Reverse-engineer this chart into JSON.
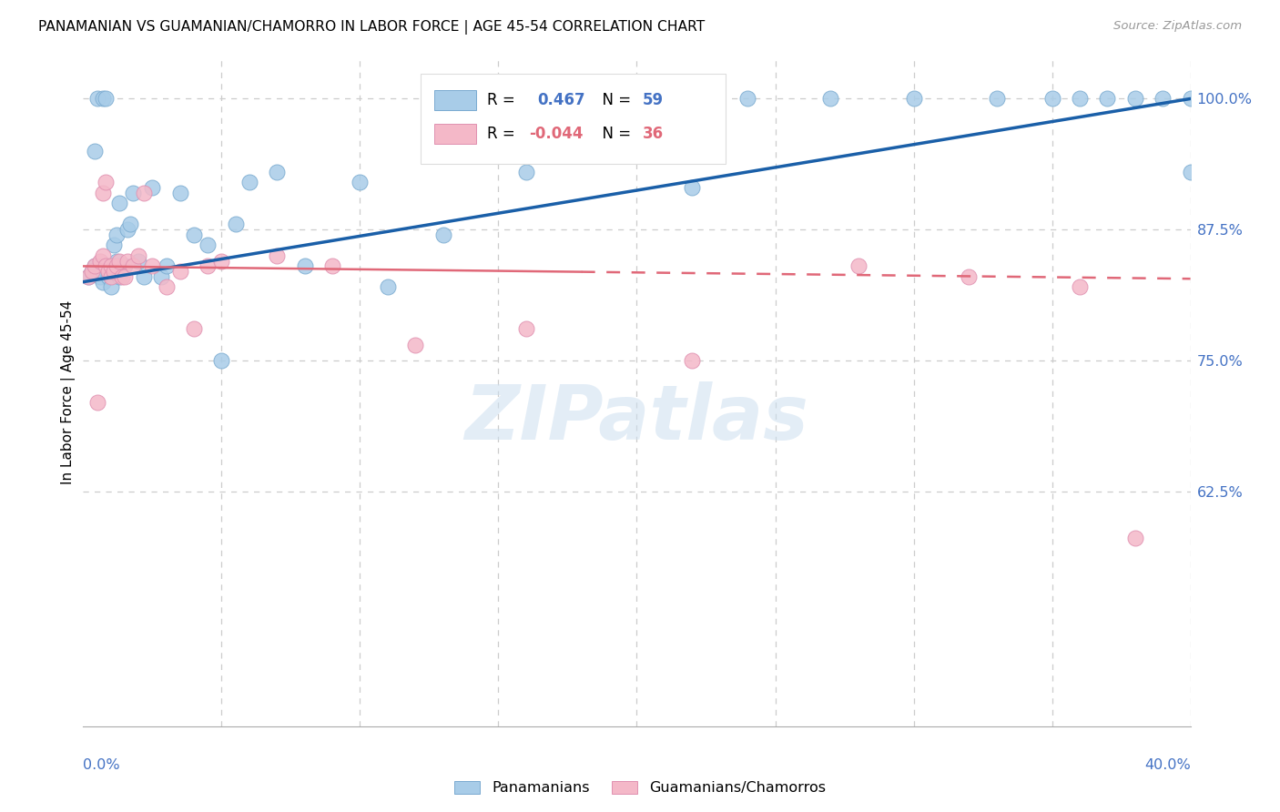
{
  "title": "PANAMANIAN VS GUAMANIAN/CHAMORRO IN LABOR FORCE | AGE 45-54 CORRELATION CHART",
  "source": "Source: ZipAtlas.com",
  "ylabel": "In Labor Force | Age 45-54",
  "right_yticks": [
    100.0,
    87.5,
    75.0,
    62.5
  ],
  "right_ytick_labels": [
    "100.0%",
    "87.5%",
    "75.0%",
    "62.5%"
  ],
  "xmin": 0.0,
  "xmax": 40.0,
  "ymin": 40.0,
  "ymax": 104.0,
  "r_blue": 0.467,
  "n_blue": 59,
  "r_pink": -0.044,
  "n_pink": 36,
  "blue_color": "#a8cce8",
  "pink_color": "#f4b8c8",
  "blue_edge_color": "#7aaad0",
  "pink_edge_color": "#e090b0",
  "blue_line_color": "#1a5fa8",
  "pink_line_color": "#e06878",
  "pink_line_solid_color": "#e06878",
  "pink_line_dash_color": "#e8a0b0",
  "watermark_text": "ZIPatlas",
  "watermark_color": "#ccdff0",
  "blue_x": [
    0.2,
    0.3,
    0.4,
    0.4,
    0.5,
    0.5,
    0.6,
    0.6,
    0.7,
    0.7,
    0.7,
    0.8,
    0.8,
    0.9,
    0.9,
    1.0,
    1.0,
    1.1,
    1.1,
    1.2,
    1.2,
    1.3,
    1.3,
    1.5,
    1.6,
    1.7,
    1.8,
    2.0,
    2.2,
    2.5,
    2.8,
    3.0,
    3.5,
    4.0,
    4.5,
    5.0,
    5.5,
    6.0,
    7.0,
    8.0,
    10.0,
    11.0,
    13.0,
    14.0,
    16.0,
    18.0,
    20.0,
    22.0,
    24.0,
    27.0,
    30.0,
    33.0,
    35.0,
    36.0,
    37.0,
    38.0,
    39.0,
    40.0,
    40.0
  ],
  "blue_y": [
    83.0,
    83.5,
    84.0,
    95.0,
    83.5,
    100.0,
    83.0,
    84.0,
    82.5,
    83.5,
    100.0,
    84.0,
    100.0,
    83.0,
    84.0,
    82.0,
    83.5,
    84.0,
    86.0,
    84.5,
    87.0,
    83.0,
    90.0,
    84.0,
    87.5,
    88.0,
    91.0,
    84.5,
    83.0,
    91.5,
    83.0,
    84.0,
    91.0,
    87.0,
    86.0,
    75.0,
    88.0,
    92.0,
    93.0,
    84.0,
    92.0,
    82.0,
    87.0,
    95.0,
    93.0,
    100.0,
    100.0,
    91.5,
    100.0,
    100.0,
    100.0,
    100.0,
    100.0,
    100.0,
    100.0,
    100.0,
    100.0,
    100.0,
    93.0
  ],
  "pink_x": [
    0.2,
    0.3,
    0.4,
    0.5,
    0.6,
    0.7,
    0.7,
    0.8,
    0.8,
    0.9,
    1.0,
    1.0,
    1.1,
    1.2,
    1.3,
    1.4,
    1.5,
    1.6,
    1.8,
    2.0,
    2.2,
    2.5,
    3.0,
    3.5,
    4.0,
    4.5,
    5.0,
    7.0,
    9.0,
    12.0,
    16.0,
    22.0,
    28.0,
    32.0,
    36.0,
    38.0
  ],
  "pink_y": [
    83.0,
    83.5,
    84.0,
    71.0,
    84.5,
    85.0,
    91.0,
    84.0,
    92.0,
    83.5,
    83.0,
    84.0,
    83.5,
    84.0,
    84.5,
    83.0,
    83.0,
    84.5,
    84.0,
    85.0,
    91.0,
    84.0,
    82.0,
    83.5,
    78.0,
    84.0,
    84.5,
    85.0,
    84.0,
    76.5,
    78.0,
    75.0,
    84.0,
    83.0,
    82.0,
    58.0
  ],
  "blue_trend_x0": 0.0,
  "blue_trend_y0": 82.5,
  "blue_trend_x1": 40.0,
  "blue_trend_y1": 100.0,
  "pink_trend_x0": 0.0,
  "pink_trend_y0": 84.0,
  "pink_trend_x1": 40.0,
  "pink_trend_y1": 82.8,
  "pink_solid_end_x": 18.0
}
